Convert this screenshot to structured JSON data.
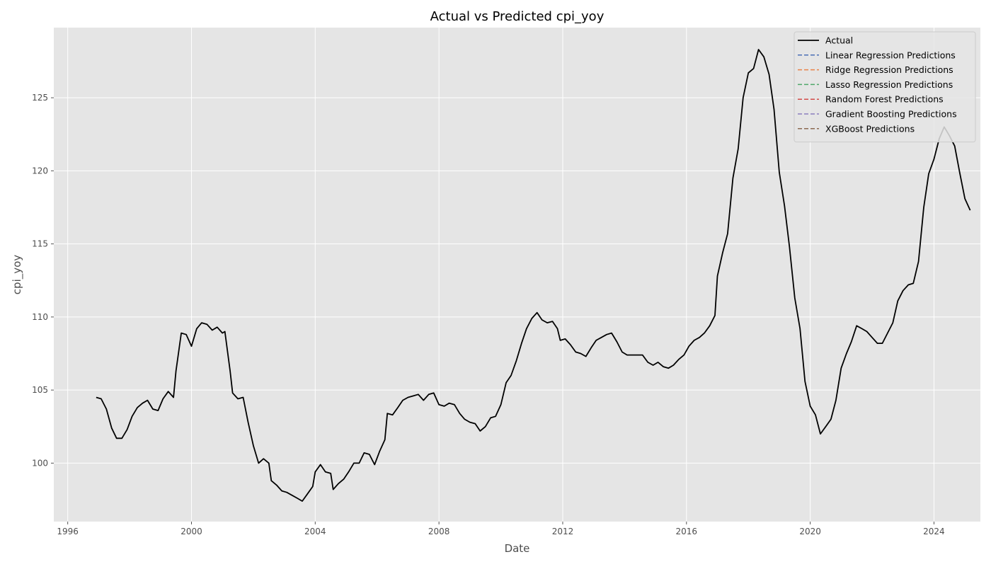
{
  "chart_data": {
    "type": "line",
    "title": "Actual vs Predicted cpi_yoy",
    "xlabel": "Date",
    "ylabel": "cpi_yoy",
    "xlim": [
      1995.55,
      2025.5
    ],
    "ylim": [
      96.0,
      129.8
    ],
    "x_ticks": [
      1996,
      2000,
      2004,
      2008,
      2012,
      2016,
      2020,
      2024
    ],
    "x_tick_labels": [
      "1996",
      "2000",
      "2004",
      "2008",
      "2012",
      "2016",
      "2020",
      "2024"
    ],
    "y_ticks": [
      100,
      105,
      110,
      115,
      120,
      125
    ],
    "y_tick_labels": [
      "100",
      "105",
      "110",
      "115",
      "120",
      "125"
    ],
    "grid": true,
    "style": "ggplot",
    "legend_location": "top-right",
    "series": [
      {
        "name": "Actual",
        "color": "#000000",
        "dashed": false,
        "points": [
          [
            1996.92,
            104.5
          ],
          [
            1997.08,
            104.4
          ],
          [
            1997.25,
            103.7
          ],
          [
            1997.42,
            102.4
          ],
          [
            1997.58,
            101.7
          ],
          [
            1997.75,
            101.7
          ],
          [
            1997.92,
            102.3
          ],
          [
            1998.08,
            103.2
          ],
          [
            1998.25,
            103.8
          ],
          [
            1998.42,
            104.1
          ],
          [
            1998.58,
            104.3
          ],
          [
            1998.75,
            103.7
          ],
          [
            1998.92,
            103.6
          ],
          [
            1999.08,
            104.4
          ],
          [
            1999.25,
            104.9
          ],
          [
            1999.42,
            104.5
          ],
          [
            1999.5,
            106.3
          ],
          [
            1999.67,
            108.9
          ],
          [
            1999.83,
            108.8
          ],
          [
            2000.0,
            108.0
          ],
          [
            2000.17,
            109.2
          ],
          [
            2000.33,
            109.6
          ],
          [
            2000.5,
            109.5
          ],
          [
            2000.67,
            109.1
          ],
          [
            2000.83,
            109.3
          ],
          [
            2001.0,
            108.9
          ],
          [
            2001.08,
            109.0
          ],
          [
            2001.25,
            106.3
          ],
          [
            2001.33,
            104.8
          ],
          [
            2001.5,
            104.4
          ],
          [
            2001.67,
            104.5
          ],
          [
            2001.83,
            102.8
          ],
          [
            2002.0,
            101.2
          ],
          [
            2002.17,
            100.0
          ],
          [
            2002.33,
            100.3
          ],
          [
            2002.5,
            100.0
          ],
          [
            2002.58,
            98.8
          ],
          [
            2002.75,
            98.5
          ],
          [
            2002.92,
            98.1
          ],
          [
            2003.08,
            98.0
          ],
          [
            2003.25,
            97.8
          ],
          [
            2003.42,
            97.6
          ],
          [
            2003.58,
            97.4
          ],
          [
            2003.75,
            97.9
          ],
          [
            2003.92,
            98.4
          ],
          [
            2004.0,
            99.4
          ],
          [
            2004.17,
            99.9
          ],
          [
            2004.33,
            99.4
          ],
          [
            2004.5,
            99.3
          ],
          [
            2004.58,
            98.2
          ],
          [
            2004.75,
            98.6
          ],
          [
            2004.92,
            98.9
          ],
          [
            2005.08,
            99.4
          ],
          [
            2005.25,
            100.0
          ],
          [
            2005.42,
            100.0
          ],
          [
            2005.58,
            100.7
          ],
          [
            2005.75,
            100.6
          ],
          [
            2005.92,
            99.9
          ],
          [
            2006.08,
            100.8
          ],
          [
            2006.25,
            101.6
          ],
          [
            2006.33,
            103.4
          ],
          [
            2006.5,
            103.3
          ],
          [
            2006.67,
            103.8
          ],
          [
            2006.83,
            104.3
          ],
          [
            2007.0,
            104.5
          ],
          [
            2007.17,
            104.6
          ],
          [
            2007.33,
            104.7
          ],
          [
            2007.5,
            104.3
          ],
          [
            2007.67,
            104.7
          ],
          [
            2007.83,
            104.8
          ],
          [
            2008.0,
            104.0
          ],
          [
            2008.17,
            103.9
          ],
          [
            2008.33,
            104.1
          ],
          [
            2008.5,
            104.0
          ],
          [
            2008.67,
            103.4
          ],
          [
            2008.83,
            103.0
          ],
          [
            2009.0,
            102.8
          ],
          [
            2009.17,
            102.7
          ],
          [
            2009.33,
            102.2
          ],
          [
            2009.5,
            102.5
          ],
          [
            2009.67,
            103.1
          ],
          [
            2009.83,
            103.2
          ],
          [
            2010.0,
            104.0
          ],
          [
            2010.17,
            105.5
          ],
          [
            2010.33,
            106.0
          ],
          [
            2010.5,
            107.0
          ],
          [
            2010.67,
            108.2
          ],
          [
            2010.83,
            109.2
          ],
          [
            2011.0,
            109.9
          ],
          [
            2011.17,
            110.3
          ],
          [
            2011.33,
            109.8
          ],
          [
            2011.5,
            109.6
          ],
          [
            2011.67,
            109.7
          ],
          [
            2011.83,
            109.2
          ],
          [
            2011.92,
            108.4
          ],
          [
            2012.08,
            108.5
          ],
          [
            2012.25,
            108.1
          ],
          [
            2012.42,
            107.6
          ],
          [
            2012.58,
            107.5
          ],
          [
            2012.75,
            107.3
          ],
          [
            2012.92,
            107.9
          ],
          [
            2013.08,
            108.4
          ],
          [
            2013.25,
            108.6
          ],
          [
            2013.42,
            108.8
          ],
          [
            2013.58,
            108.9
          ],
          [
            2013.75,
            108.3
          ],
          [
            2013.92,
            107.6
          ],
          [
            2014.08,
            107.4
          ],
          [
            2014.25,
            107.4
          ],
          [
            2014.42,
            107.4
          ],
          [
            2014.58,
            107.4
          ],
          [
            2014.75,
            106.9
          ],
          [
            2014.92,
            106.7
          ],
          [
            2015.08,
            106.9
          ],
          [
            2015.25,
            106.6
          ],
          [
            2015.42,
            106.5
          ],
          [
            2015.58,
            106.7
          ],
          [
            2015.75,
            107.1
          ],
          [
            2015.92,
            107.4
          ],
          [
            2016.08,
            108.0
          ],
          [
            2016.25,
            108.4
          ],
          [
            2016.42,
            108.6
          ],
          [
            2016.58,
            108.9
          ],
          [
            2016.75,
            109.4
          ],
          [
            2016.92,
            110.1
          ],
          [
            2017.0,
            112.8
          ],
          [
            2017.17,
            114.4
          ],
          [
            2017.33,
            115.7
          ],
          [
            2017.5,
            119.5
          ],
          [
            2017.67,
            121.5
          ],
          [
            2017.83,
            125.0
          ],
          [
            2018.0,
            126.7
          ],
          [
            2018.17,
            127.0
          ],
          [
            2018.33,
            128.3
          ],
          [
            2018.5,
            127.8
          ],
          [
            2018.67,
            126.6
          ],
          [
            2018.83,
            124.2
          ],
          [
            2019.0,
            119.9
          ],
          [
            2019.17,
            117.6
          ],
          [
            2019.33,
            114.8
          ],
          [
            2019.5,
            111.3
          ],
          [
            2019.67,
            109.2
          ],
          [
            2019.83,
            105.6
          ],
          [
            2020.0,
            103.9
          ],
          [
            2020.17,
            103.3
          ],
          [
            2020.33,
            102.0
          ],
          [
            2020.5,
            102.5
          ],
          [
            2020.67,
            103.0
          ],
          [
            2020.83,
            104.3
          ],
          [
            2021.0,
            106.5
          ],
          [
            2021.17,
            107.5
          ],
          [
            2021.33,
            108.3
          ],
          [
            2021.5,
            109.4
          ],
          [
            2021.67,
            109.2
          ],
          [
            2021.83,
            109.0
          ],
          [
            2022.0,
            108.6
          ],
          [
            2022.17,
            108.2
          ],
          [
            2022.33,
            108.2
          ],
          [
            2022.5,
            108.9
          ],
          [
            2022.67,
            109.6
          ],
          [
            2022.83,
            111.1
          ],
          [
            2023.0,
            111.8
          ],
          [
            2023.17,
            112.2
          ],
          [
            2023.33,
            112.3
          ],
          [
            2023.5,
            113.8
          ],
          [
            2023.67,
            117.5
          ],
          [
            2023.83,
            119.8
          ],
          [
            2024.0,
            120.8
          ],
          [
            2024.17,
            122.2
          ],
          [
            2024.33,
            123.0
          ],
          [
            2024.5,
            122.4
          ],
          [
            2024.67,
            121.7
          ],
          [
            2024.83,
            119.9
          ],
          [
            2025.0,
            118.1
          ],
          [
            2025.17,
            117.3
          ]
        ]
      },
      {
        "name": "Linear Regression Predictions",
        "color": "#4a6fb5",
        "dashed": true,
        "points": []
      },
      {
        "name": "Ridge Regression Predictions",
        "color": "#e9834a",
        "dashed": true,
        "points": []
      },
      {
        "name": "Lasso Regression Predictions",
        "color": "#4fa86a",
        "dashed": true,
        "points": []
      },
      {
        "name": "Random Forest Predictions",
        "color": "#d24b49",
        "dashed": true,
        "points": []
      },
      {
        "name": "Gradient Boosting Predictions",
        "color": "#8c7fbf",
        "dashed": true,
        "points": []
      },
      {
        "name": "XGBoost Predictions",
        "color": "#8c6a52",
        "dashed": true,
        "points": []
      }
    ]
  }
}
